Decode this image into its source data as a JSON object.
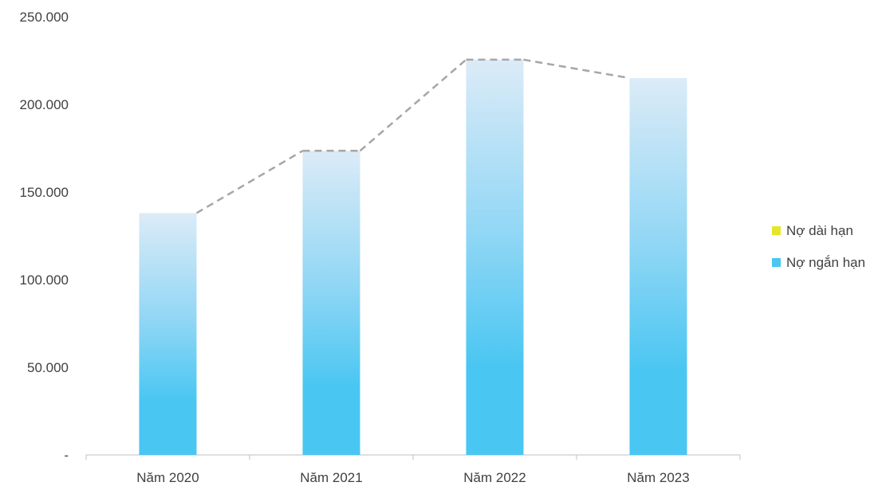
{
  "chart_data": {
    "type": "bar",
    "categories": [
      "Năm 2020",
      "Năm 2021",
      "Năm 2022",
      "Năm 2023"
    ],
    "series": [
      {
        "name": "Nợ dài hạn",
        "values": [
          0,
          0,
          0,
          0
        ],
        "color": "#e6e629"
      },
      {
        "name": "Nợ ngắn hạn",
        "values": [
          138000,
          173500,
          225500,
          215000
        ],
        "color": "#49c6f2"
      }
    ],
    "total_line": {
      "style": "dashed",
      "color": "#a6a6a6",
      "values": [
        138000,
        173500,
        225500,
        215000
      ]
    },
    "y_ticks": [
      {
        "value": 0,
        "label": "-"
      },
      {
        "value": 50000,
        "label": "50.000"
      },
      {
        "value": 100000,
        "label": "100.000"
      },
      {
        "value": 150000,
        "label": "150.000"
      },
      {
        "value": 200000,
        "label": "200.000"
      },
      {
        "value": 250000,
        "label": "250.000"
      }
    ],
    "ylim": [
      0,
      250000
    ],
    "grid": false,
    "legend_position": "right",
    "title": "",
    "xlabel": "",
    "ylabel": ""
  }
}
